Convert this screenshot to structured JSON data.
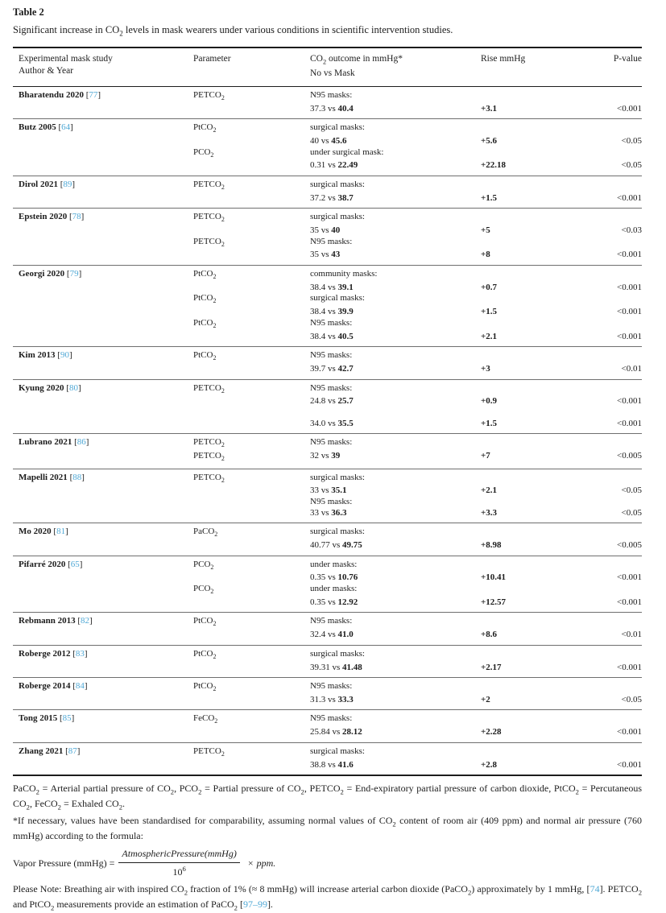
{
  "colors": {
    "link_blue": "#4fa8d5",
    "text": "#1c1c1c"
  },
  "meta": {
    "table_label": "Table 2",
    "caption": "Significant increase in CO{2} levels in mask wearers under various conditions in scientific intervention studies."
  },
  "header": {
    "study_line1": "Experimental mask study",
    "study_line2": "Author & Year",
    "parameter": "Parameter",
    "outcome_line1": "CO{2} outcome in mmHg*",
    "outcome_line2": "No vs Mask",
    "rise": "Rise mmHg",
    "pvalue": "P-value"
  },
  "table": {
    "rows": [
      {
        "study": "Bharatendu 2020",
        "ref": "77",
        "lines": [
          {
            "param": "PETCO{2}",
            "text": "N95 masks:"
          },
          {
            "value": "37.3 vs",
            "bold": "40.4",
            "rise": "+3.1",
            "p": "<0.001"
          }
        ]
      },
      {
        "study": "Butz 2005",
        "ref": "64",
        "lines": [
          {
            "param": "PtCO{2}",
            "text": "surgical masks:"
          },
          {
            "value": "40 vs",
            "bold": "45.6",
            "rise": "+5.6",
            "p": "<0.05"
          },
          {
            "param": "PCO{2}",
            "text": "under surgical mask:"
          },
          {
            "value": "0.31 vs",
            "bold": "22.49",
            "rise": "+22.18",
            "p": "<0.05"
          }
        ]
      },
      {
        "study": "Dirol 2021",
        "ref": "89",
        "lines": [
          {
            "param": "PETCO{2}",
            "text": "surgical masks:"
          },
          {
            "value": "37.2 vs",
            "bold": "38.7",
            "rise": "+1.5",
            "p": "<0.001"
          }
        ]
      },
      {
        "study": "Epstein 2020",
        "ref": "78",
        "lines": [
          {
            "param": "PETCO{2}",
            "text": "surgical masks:"
          },
          {
            "value": "35 vs",
            "bold": "40",
            "rise": "+5",
            "p": "<0.03"
          },
          {
            "param": "PETCO{2}",
            "text": "N95 masks:"
          },
          {
            "value": "35 vs",
            "bold": "43",
            "rise": "+8",
            "p": "<0.001"
          }
        ]
      },
      {
        "study": "Georgi 2020",
        "ref": "79",
        "lines": [
          {
            "param": "PtCO{2}",
            "text": "community masks:"
          },
          {
            "value": "38.4 vs",
            "bold": "39.1",
            "rise": "+0.7",
            "p": "<0.001"
          },
          {
            "param": "PtCO{2}",
            "text": "surgical masks:"
          },
          {
            "value": "38.4 vs",
            "bold": "39.9",
            "rise": "+1.5",
            "p": "<0.001"
          },
          {
            "param": "PtCO{2}",
            "text": "N95 masks:"
          },
          {
            "value": "38.4 vs",
            "bold": "40.5",
            "rise": "+2.1",
            "p": "<0.001"
          }
        ]
      },
      {
        "study": "Kim 2013",
        "ref": "90",
        "lines": [
          {
            "param": "PtCO{2}",
            "text": "N95 masks:"
          },
          {
            "value": "39.7 vs",
            "bold": "42.7",
            "rise": "+3",
            "p": "<0.01"
          }
        ]
      },
      {
        "study": "Kyung 2020",
        "ref": "80",
        "lines": [
          {
            "param": "PETCO{2}",
            "text": "N95 masks:"
          },
          {
            "value": "24.8 vs",
            "bold": "25.7",
            "rise": "+0.9",
            "p": "<0.001"
          },
          {},
          {
            "value": "34.0 vs",
            "bold": "35.5",
            "rise": "+1.5",
            "p": "<0.001"
          }
        ]
      },
      {
        "study": "Lubrano 2021",
        "ref": "86",
        "lines": [
          {
            "param": "PETCO{2}",
            "text": "N95 masks:"
          },
          {
            "param": "PETCO{2}",
            "value": "32 vs",
            "bold": "39",
            "rise": "+7",
            "p": "<0.005"
          }
        ]
      },
      {
        "study": "Mapelli 2021",
        "ref": "88",
        "lines": [
          {
            "param": "PETCO{2}",
            "text": "surgical masks:"
          },
          {
            "value": "33 vs",
            "bold": "35.1",
            "rise": "+2.1",
            "p": "<0.05"
          },
          {
            "text": "N95 masks:"
          },
          {
            "value": "33 vs",
            "bold": "36.3",
            "rise": "+3.3",
            "p": "<0.05"
          }
        ]
      },
      {
        "study": "Mo 2020",
        "ref": "81",
        "lines": [
          {
            "param": "PaCO{2}",
            "text": "surgical masks:"
          },
          {
            "value": "40.77 vs",
            "bold": "49.75",
            "rise": "+8.98",
            "p": "<0.005"
          }
        ]
      },
      {
        "study": "Pifarré 2020",
        "ref": "65",
        "lines": [
          {
            "param": "PCO{2}",
            "text": "under masks:"
          },
          {
            "value": "0.35 vs",
            "bold": "10.76",
            "rise": "+10.41",
            "p": "<0.001"
          },
          {
            "param": "PCO{2}",
            "text": "under masks:"
          },
          {
            "value": "0.35 vs",
            "bold": "12.92",
            "rise": "+12.57",
            "p": "<0.001"
          }
        ]
      },
      {
        "study": "Rebmann 2013",
        "ref": "82",
        "lines": [
          {
            "param": "PtCO{2}",
            "text": "N95 masks:"
          },
          {
            "value": "32.4 vs",
            "bold": "41.0",
            "rise": "+8.6",
            "p": "<0.01"
          }
        ]
      },
      {
        "study": "Roberge 2012",
        "ref": "83",
        "lines": [
          {
            "param": "PtCO{2}",
            "text": "surgical masks:"
          },
          {
            "value": "39.31 vs",
            "bold": "41.48",
            "rise": "+2.17",
            "p": "<0.001"
          }
        ]
      },
      {
        "study": "Roberge 2014",
        "ref": "84",
        "lines": [
          {
            "param": "PtCO{2}",
            "text": "N95 masks:"
          },
          {
            "value": "31.3 vs",
            "bold": "33.3",
            "rise": "+2",
            "p": "<0.05"
          }
        ]
      },
      {
        "study": "Tong 2015",
        "ref": "85",
        "lines": [
          {
            "param": "FeCO{2}",
            "text": "N95 masks:"
          },
          {
            "value": "25.84 vs",
            "bold": "28.12",
            "rise": "+2.28",
            "p": "<0.001"
          }
        ]
      },
      {
        "study": "Zhang 2021",
        "ref": "87",
        "lines": [
          {
            "param": "PETCO{2}",
            "text": "surgical masks:"
          },
          {
            "value": "38.8 vs",
            "bold": "41.6",
            "rise": "+2.8",
            "p": "<0.001"
          }
        ]
      }
    ]
  },
  "footnotes": {
    "abbreviations": "PaCO{2} = Arterial partial pressure of CO{2}, PCO{2} = Partial pressure of CO{2}, PETCO{2} = End-expiratory partial pressure of carbon dioxide, PtCO{2} = Percutaneous CO{2}, FeCO{2} = Exhaled CO{2}.",
    "standardisation": "*If necessary, values have been standardised for comparability, assuming normal values of CO{2} content of room air (409 ppm) and normal air pressure (760 mmHg) according to the formula:",
    "note": "Please Note: Breathing air with inspired CO{2} fraction of 1% (≈ 8 mmHg) will increase arterial carbon dioxide (PaCO{2}) approximately by 1 mmHg, [@74]. PETCO{2} and PtCO{2} measurements provide an estimation of PaCO{2} [@97–99]."
  },
  "formula": {
    "lhs": "Vapor Pressure (mmHg) =",
    "numerator": "AtmosphericPressure(mmHg)",
    "den_base": "10",
    "den_exp": "6",
    "times": "×",
    "unit": "ppm."
  }
}
